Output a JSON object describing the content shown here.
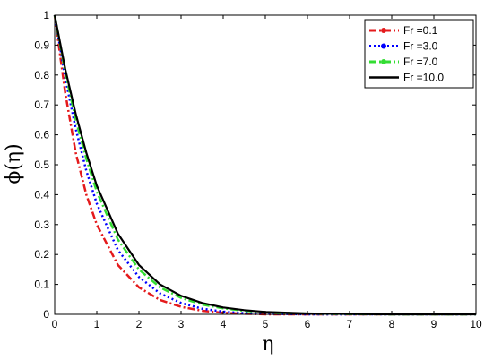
{
  "chart_data": {
    "type": "line",
    "title": "",
    "xlabel": "η",
    "ylabel": "ϕ(η)",
    "xlim": [
      0,
      10
    ],
    "ylim": [
      0,
      1
    ],
    "xticks": [
      0,
      1,
      2,
      3,
      4,
      5,
      6,
      7,
      8,
      9,
      10
    ],
    "yticks": [
      0,
      0.1,
      0.2,
      0.3,
      0.4,
      0.5,
      0.6,
      0.7,
      0.8,
      0.9,
      1
    ],
    "grid": false,
    "legend_position": "top-right",
    "x": [
      0,
      0.25,
      0.5,
      0.75,
      1,
      1.5,
      2,
      2.5,
      3,
      3.5,
      4,
      4.5,
      5,
      6,
      7,
      8,
      9,
      10
    ],
    "series": [
      {
        "name": "Fr =0.1",
        "color": "#e41a1c",
        "style": "dash-dot-marker",
        "values": [
          1,
          0.74,
          0.54,
          0.4,
          0.3,
          0.165,
          0.09,
          0.048,
          0.025,
          0.012,
          0.005,
          0.002,
          0,
          0,
          0,
          0,
          0,
          0
        ]
      },
      {
        "name": "Fr =3.0",
        "color": "#0000ff",
        "style": "dotted-marker",
        "values": [
          1,
          0.79,
          0.62,
          0.48,
          0.37,
          0.215,
          0.125,
          0.07,
          0.038,
          0.019,
          0.009,
          0.004,
          0.002,
          0,
          0,
          0,
          0,
          0
        ]
      },
      {
        "name": "Fr =7.0",
        "color": "#33dd33",
        "style": "dash-dot-marker",
        "values": [
          1,
          0.81,
          0.65,
          0.52,
          0.41,
          0.25,
          0.15,
          0.09,
          0.055,
          0.033,
          0.02,
          0.012,
          0.007,
          0.002,
          0.001,
          0,
          0,
          0
        ]
      },
      {
        "name": "Fr =10.0",
        "color": "#000000",
        "style": "solid",
        "values": [
          1,
          0.82,
          0.67,
          0.54,
          0.43,
          0.27,
          0.165,
          0.1,
          0.062,
          0.038,
          0.023,
          0.014,
          0.008,
          0.003,
          0.001,
          0,
          0,
          0
        ]
      }
    ]
  }
}
